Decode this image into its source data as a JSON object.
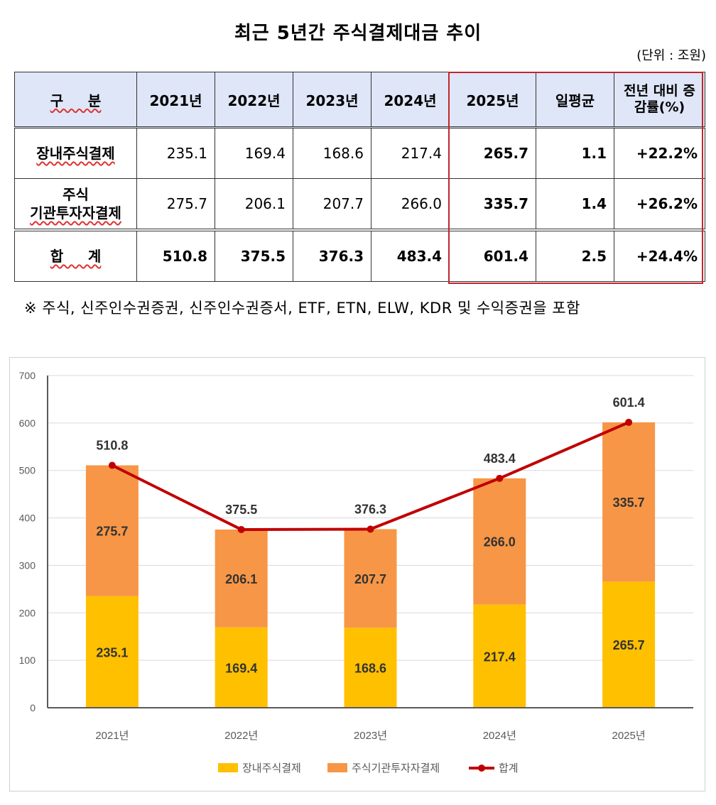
{
  "title": "최근 5년간 주식결제대금 추이",
  "unit": "(단위 : 조원)",
  "table": {
    "headers": [
      "구     분",
      "2021년",
      "2022년",
      "2023년",
      "2024년",
      "2025년",
      "일평균",
      "전년 대비 증감률(%)"
    ],
    "rows": [
      {
        "label": "장내주식결제",
        "values": [
          "235.1",
          "169.4",
          "168.6",
          "217.4",
          "265.7",
          "1.1",
          "+22.2%"
        ]
      },
      {
        "label_line1": "주식",
        "label_line2": "기관투자자결제",
        "values": [
          "275.7",
          "206.1",
          "207.7",
          "266.0",
          "335.7",
          "1.4",
          "+26.2%"
        ]
      },
      {
        "label": "합     계",
        "values": [
          "510.8",
          "375.5",
          "376.3",
          "483.4",
          "601.4",
          "2.5",
          "+24.4%"
        ]
      }
    ]
  },
  "note": "※ 주식, 신주인수권증권, 신주인수권증서, ETF, ETN, ELW, KDR 및 수익증권을 포함",
  "chart_data": {
    "type": "bar",
    "stacked": true,
    "categories": [
      "2021년",
      "2022년",
      "2023년",
      "2024년",
      "2025년"
    ],
    "series": [
      {
        "name": "장내주식결제",
        "type": "bar",
        "color": "#FFC000",
        "values": [
          235.1,
          169.4,
          168.6,
          217.4,
          265.7
        ]
      },
      {
        "name": "주식기관투자자결제",
        "type": "bar",
        "color": "#F79646",
        "values": [
          275.7,
          206.1,
          207.7,
          266.0,
          335.7
        ]
      },
      {
        "name": "합계",
        "type": "line",
        "color": "#C00000",
        "values": [
          510.8,
          375.5,
          376.3,
          483.4,
          601.4
        ]
      }
    ],
    "ylim": [
      0,
      700
    ],
    "yticks": [
      0,
      100,
      200,
      300,
      400,
      500,
      600,
      700
    ],
    "grid": true,
    "legend": "bottom"
  }
}
